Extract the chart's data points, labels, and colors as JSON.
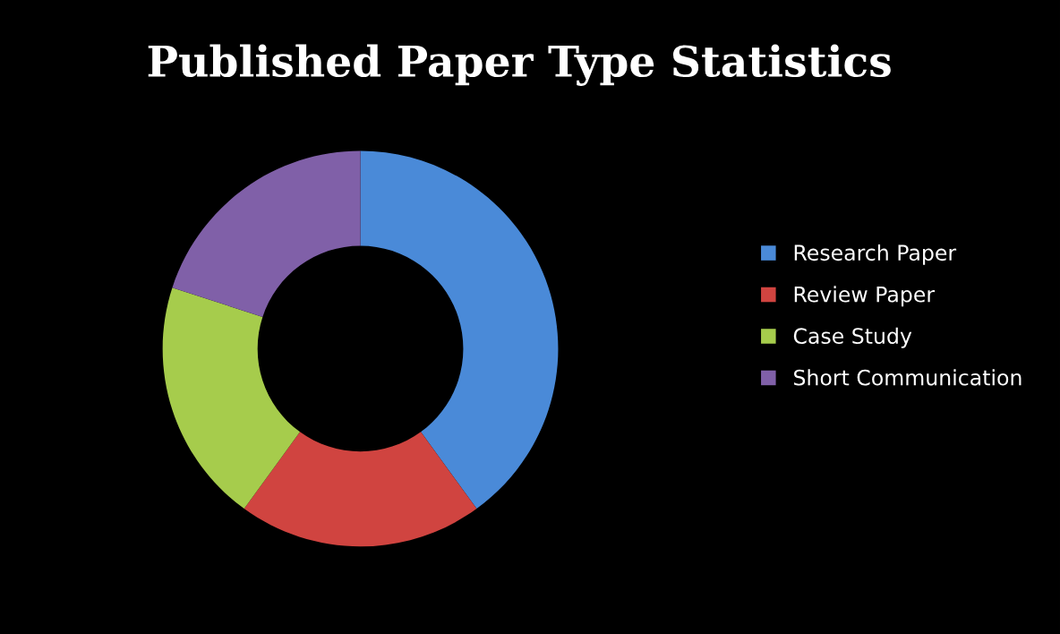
{
  "chart_data": {
    "type": "donut",
    "title": "Published Paper Type Statistics",
    "categories": [
      "Research Paper",
      "Review Paper",
      "Case Study",
      "Short Communication"
    ],
    "values": [
      40,
      20,
      20,
      20
    ],
    "colors": [
      "#4a8ad8",
      "#d04440",
      "#a6cc4c",
      "#8060a8"
    ],
    "legend": "right"
  }
}
